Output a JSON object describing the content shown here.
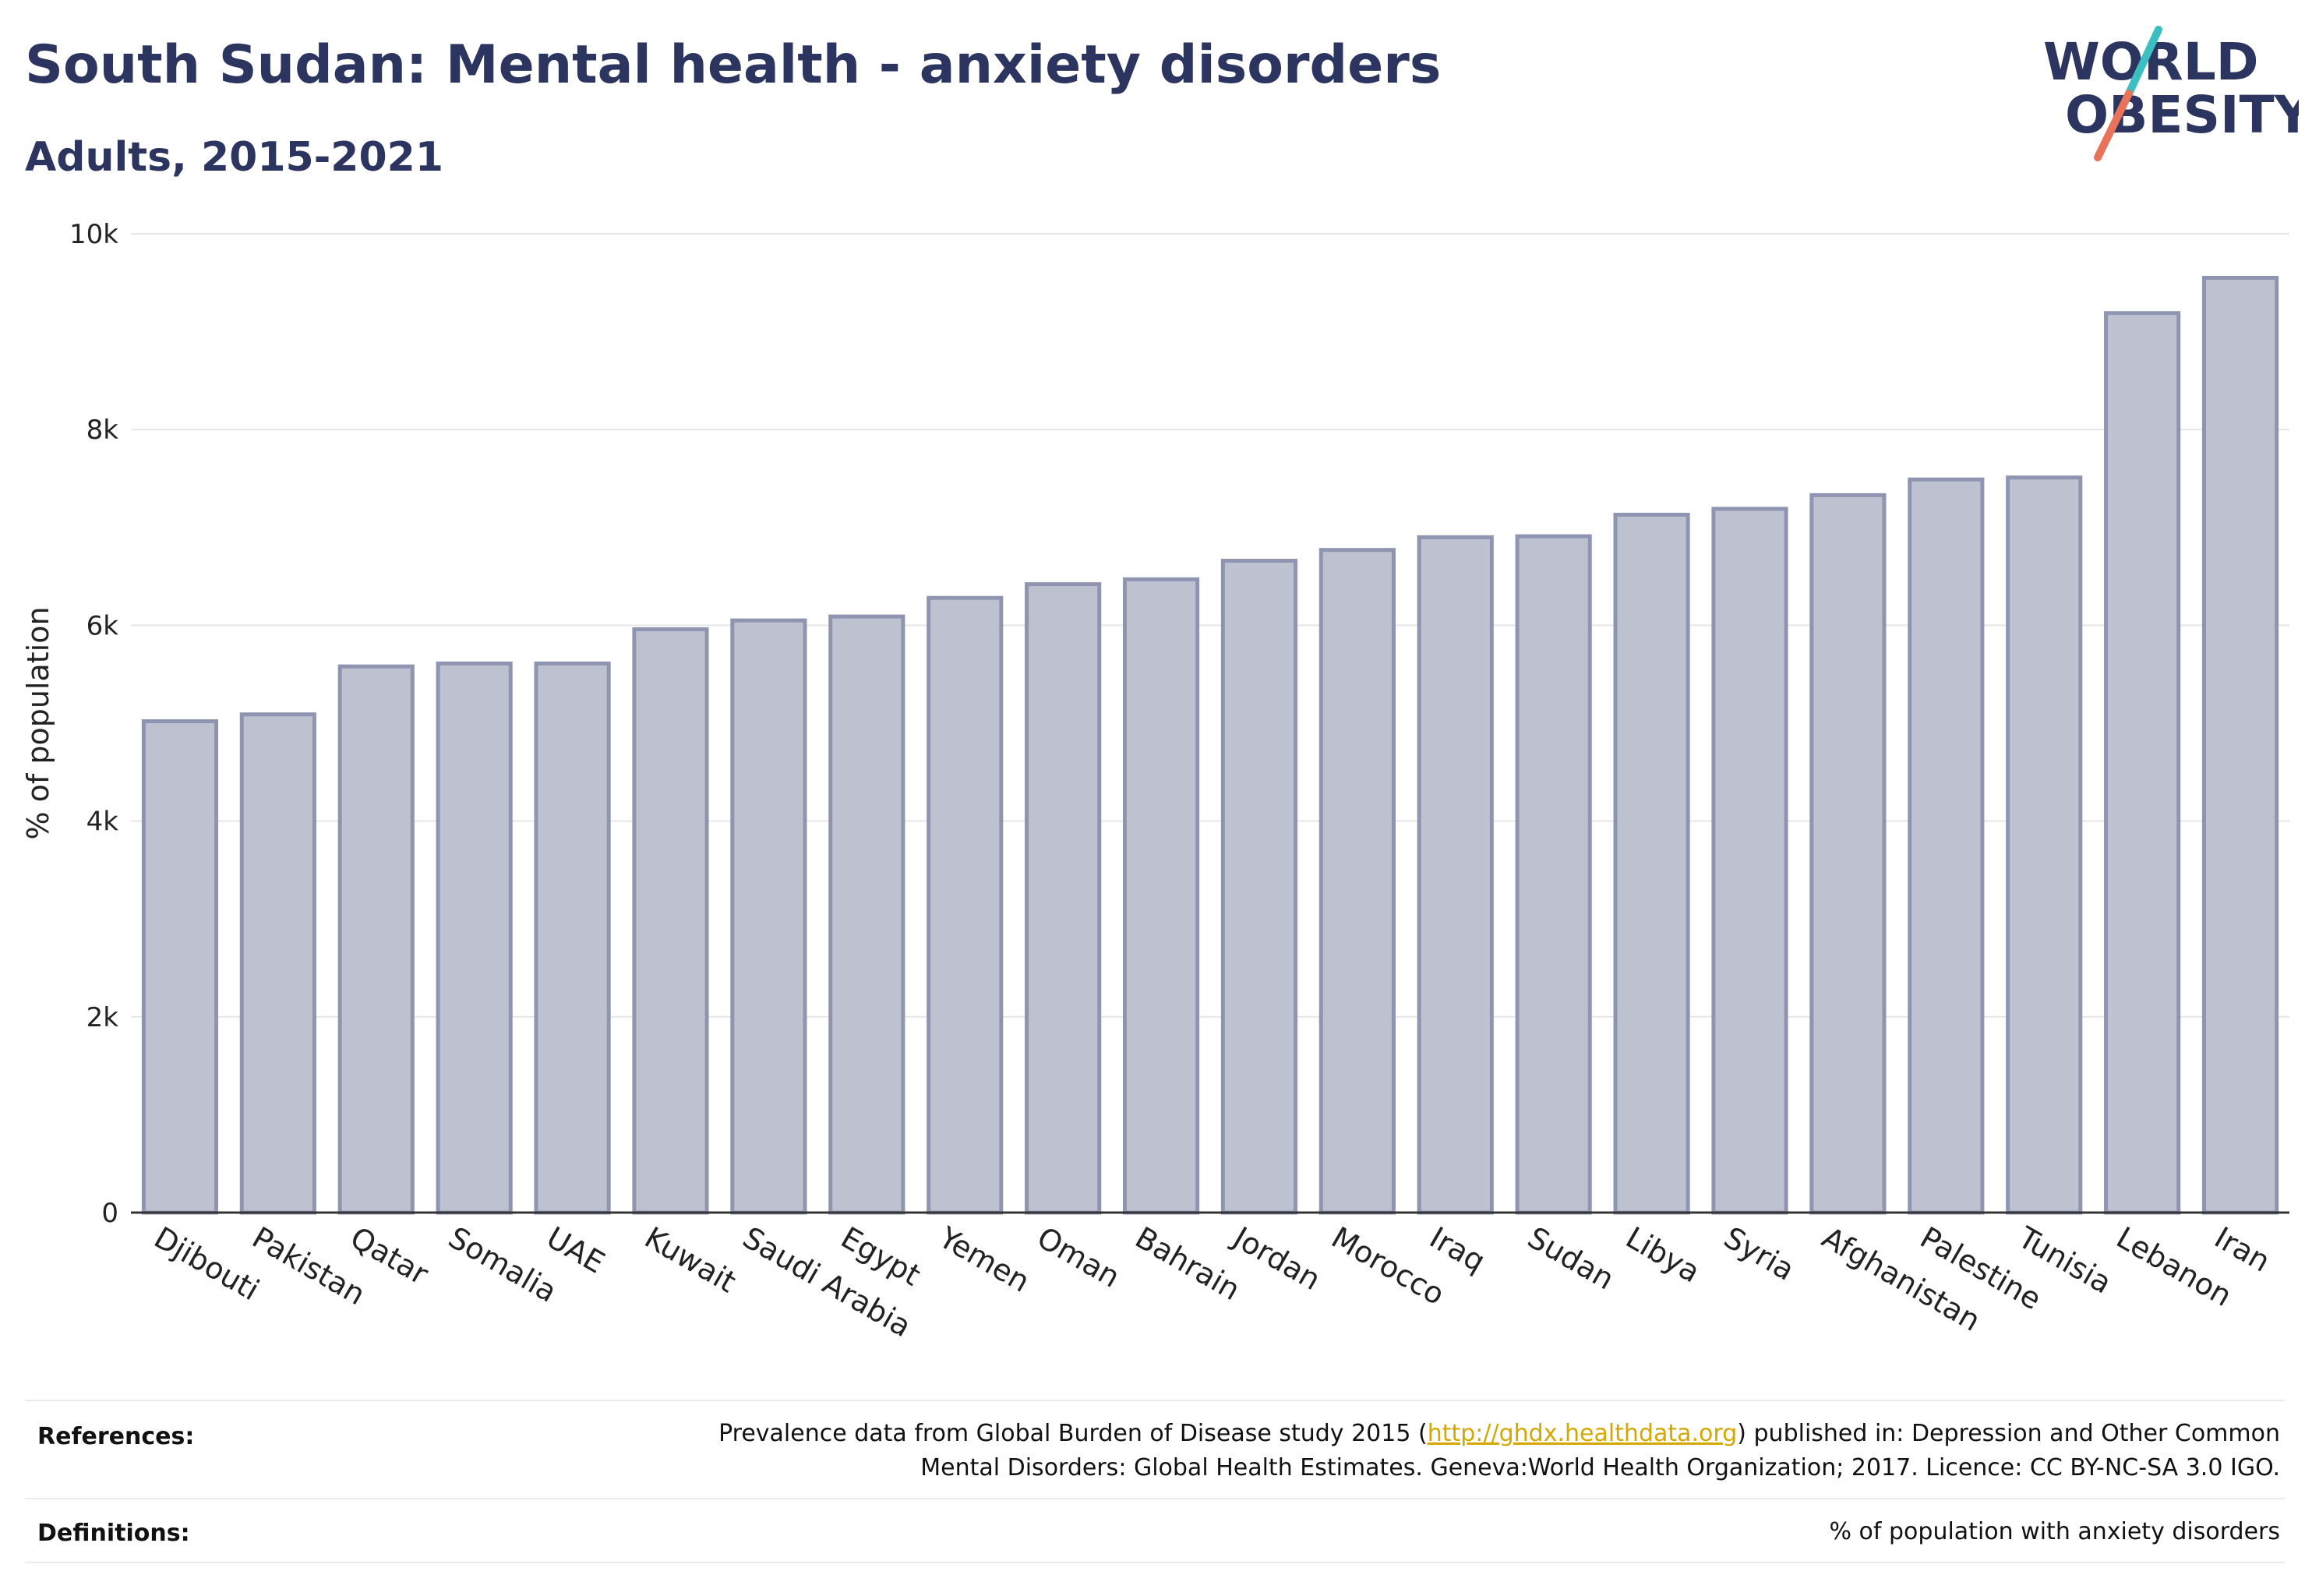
{
  "header": {
    "title": "South Sudan: Mental health - anxiety disorders",
    "subtitle": "Adults, 2015-2021"
  },
  "logo": {
    "line1": "WORLD",
    "line2": "OBESITY",
    "accent_teal": "#3bbfc0",
    "accent_coral": "#e8735a"
  },
  "chart_data": {
    "type": "bar",
    "title": "South Sudan: Mental health - anxiety disorders",
    "subtitle": "Adults, 2015-2021",
    "ylabel": "% of population",
    "xlabel": "",
    "ylim": [
      0,
      10000
    ],
    "yticks": [
      0,
      2000,
      4000,
      6000,
      8000,
      10000
    ],
    "ytick_labels": [
      "0",
      "2k",
      "4k",
      "6k",
      "8k",
      "10k"
    ],
    "categories": [
      "Djibouti",
      "Pakistan",
      "Qatar",
      "Somalia",
      "UAE",
      "Kuwait",
      "Saudi Arabia",
      "Egypt",
      "Yemen",
      "Oman",
      "Bahrain",
      "Jordan",
      "Morocco",
      "Iraq",
      "Sudan",
      "Libya",
      "Syria",
      "Afghanistan",
      "Palestine",
      "Tunisia",
      "Lebanon",
      "Iran"
    ],
    "values": [
      5020,
      5090,
      5580,
      5610,
      5610,
      5960,
      6050,
      6090,
      6280,
      6420,
      6470,
      6660,
      6770,
      6900,
      6910,
      7130,
      7190,
      7330,
      7490,
      7510,
      9190,
      9550
    ],
    "bar_color": "#bec2d0",
    "bar_edge_color": "#8f95b0",
    "grid": true,
    "legend": "none"
  },
  "footer": {
    "references_label": "References:",
    "references_pre": "Prevalence data from Global Burden of Disease study 2015 (",
    "references_link": "http://ghdx.healthdata.org",
    "references_post": ") published in: Depression and Other Common",
    "references_line2": "Mental Disorders: Global Health Estimates. Geneva:World Health Organization; 2017. Licence: CC BY-NC-SA 3.0 IGO.",
    "definitions_label": "Definitions:",
    "definitions_text": "% of population with anxiety disorders"
  }
}
